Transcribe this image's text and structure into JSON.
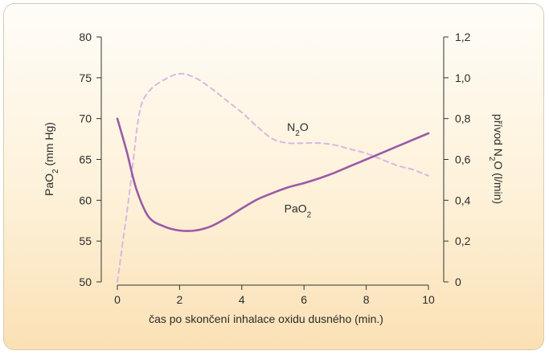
{
  "chart_data": {
    "type": "line",
    "xlabel": "čas po skončení inhalace oxidu dusného (min.)",
    "ylabel_left_main": "PaO",
    "ylabel_left_sub": "2",
    "ylabel_left_unit": " (mm Hg)",
    "ylabel_right_main": "přívod N",
    "ylabel_right_sub": "2",
    "ylabel_right_unit": "O (l/min)",
    "xlim": [
      0,
      10
    ],
    "ylim_left": [
      50,
      80
    ],
    "ylim_right": [
      0,
      1.2
    ],
    "x_ticks": [
      "0",
      "2",
      "4",
      "6",
      "8",
      "10"
    ],
    "y_left_ticks": [
      "50",
      "55",
      "60",
      "65",
      "70",
      "75",
      "80"
    ],
    "y_right_ticks": [
      "0",
      "0,2",
      "0,4",
      "0,6",
      "0,8",
      "1,0",
      "1,2"
    ],
    "series": [
      {
        "name": "PaO2",
        "label_main": "PaO",
        "label_sub": "2",
        "label_tail": "",
        "axis": "left",
        "style": "solid",
        "color": "#9b5aa8",
        "points": [
          [
            0,
            70
          ],
          [
            0.3,
            66
          ],
          [
            0.6,
            61.5
          ],
          [
            1.0,
            58
          ],
          [
            1.5,
            56.8
          ],
          [
            2.0,
            56.3
          ],
          [
            2.5,
            56.3
          ],
          [
            3.0,
            56.8
          ],
          [
            3.5,
            57.8
          ],
          [
            4.0,
            59.0
          ],
          [
            4.5,
            60.1
          ],
          [
            5.0,
            60.9
          ],
          [
            5.5,
            61.6
          ],
          [
            6.0,
            62.1
          ],
          [
            6.5,
            62.7
          ],
          [
            7.0,
            63.4
          ],
          [
            7.5,
            64.2
          ],
          [
            8.0,
            65.0
          ],
          [
            8.5,
            65.8
          ],
          [
            9.0,
            66.6
          ],
          [
            9.5,
            67.4
          ],
          [
            10.0,
            68.2
          ]
        ]
      },
      {
        "name": "N2O",
        "label_main": "N",
        "label_sub": "2",
        "label_tail": "O",
        "axis": "right",
        "style": "dashed",
        "color": "#d7b9e2",
        "points": [
          [
            0,
            0
          ],
          [
            0.4,
            0.45
          ],
          [
            0.7,
            0.82
          ],
          [
            1.0,
            0.93
          ],
          [
            1.5,
            0.99
          ],
          [
            2.0,
            1.02
          ],
          [
            2.5,
            1.0
          ],
          [
            3.0,
            0.95
          ],
          [
            3.5,
            0.89
          ],
          [
            4.0,
            0.83
          ],
          [
            4.5,
            0.76
          ],
          [
            5.0,
            0.7
          ],
          [
            5.5,
            0.68
          ],
          [
            6.0,
            0.68
          ],
          [
            6.5,
            0.68
          ],
          [
            7.0,
            0.67
          ],
          [
            7.5,
            0.65
          ],
          [
            8.0,
            0.63
          ],
          [
            8.5,
            0.6
          ],
          [
            9.0,
            0.57
          ],
          [
            9.5,
            0.55
          ],
          [
            10.0,
            0.52
          ]
        ]
      }
    ],
    "annotations": [
      {
        "series": "N2O",
        "x": 5.8,
        "y_right": 0.74
      },
      {
        "series": "PaO2",
        "x": 5.8,
        "y_left": 58.5
      }
    ]
  }
}
